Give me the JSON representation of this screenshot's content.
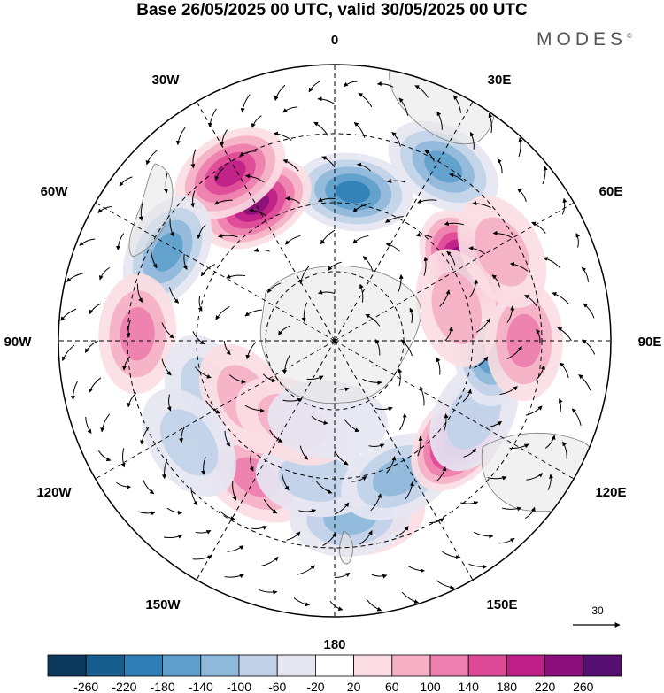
{
  "title": "Base 26/05/2025 00 UTC, valid 30/05/2025 00 UTC",
  "brand": "MODES",
  "brand_mark": "©",
  "longitude_labels": {
    "lon0": "0",
    "lon30e": "30E",
    "lon60e": "60E",
    "lon90e": "90E",
    "lon120e": "120E",
    "lon150e": "150E",
    "lon180": "180",
    "lon150w": "150W",
    "lon120w": "120W",
    "lon90w": "90W",
    "lon60w": "60W",
    "lon30w": "30W"
  },
  "reference_vector": {
    "value": "30",
    "icon": "arrow-right-icon"
  },
  "colorbar": {
    "labels": [
      "-260",
      "-220",
      "-180",
      "-140",
      "-100",
      "-60",
      "-20",
      "20",
      "60",
      "100",
      "140",
      "180",
      "220",
      "260"
    ],
    "colors": [
      "#0d3a5c",
      "#165e8e",
      "#2f7fb6",
      "#5e9fcb",
      "#8fb9da",
      "#c0d1e8",
      "#e6e6f2",
      "#ffffff",
      "#fbdde3",
      "#f5b0c5",
      "#ed7fae",
      "#de4a98",
      "#be1f88",
      "#8a0f7a",
      "#551072"
    ]
  },
  "anomaly_field": {
    "centers": [
      {
        "lat": -50,
        "lon": -30,
        "value": 110
      },
      {
        "lat": -45,
        "lon": 10,
        "value": 110
      },
      {
        "lat": -45,
        "lon": 5,
        "value": -120
      },
      {
        "lat": -55,
        "lon": -8,
        "value": -90
      },
      {
        "lat": -52,
        "lon": 25,
        "value": -130
      },
      {
        "lat": -50,
        "lon": 52,
        "value": 260
      },
      {
        "lat": -50,
        "lon": 62,
        "value": -80
      },
      {
        "lat": -50,
        "lon": 88,
        "value": -200
      },
      {
        "lat": -42,
        "lon": 90,
        "value": 110
      },
      {
        "lat": -52,
        "lon": 120,
        "value": 260
      },
      {
        "lat": -38,
        "lon": 148,
        "value": -170
      },
      {
        "lat": -42,
        "lon": 118,
        "value": 90
      },
      {
        "lat": -52,
        "lon": 173,
        "value": -200
      },
      {
        "lat": -50,
        "lon": -150,
        "value": 220
      },
      {
        "lat": -40,
        "lon": -148,
        "value": 200
      },
      {
        "lat": -42,
        "lon": -118,
        "value": -170
      },
      {
        "lat": -40,
        "lon": -92,
        "value": 110
      },
      {
        "lat": -55,
        "lon": -68,
        "value": -60
      },
      {
        "lat": -63,
        "lon": -57,
        "value": 70
      },
      {
        "lat": -67,
        "lon": -28,
        "value": 60
      },
      {
        "lat": -70,
        "lon": -5,
        "value": -50
      },
      {
        "lat": -45,
        "lon": -55,
        "value": -60
      },
      {
        "lat": -58,
        "lon": 105,
        "value": 60
      }
    ]
  }
}
